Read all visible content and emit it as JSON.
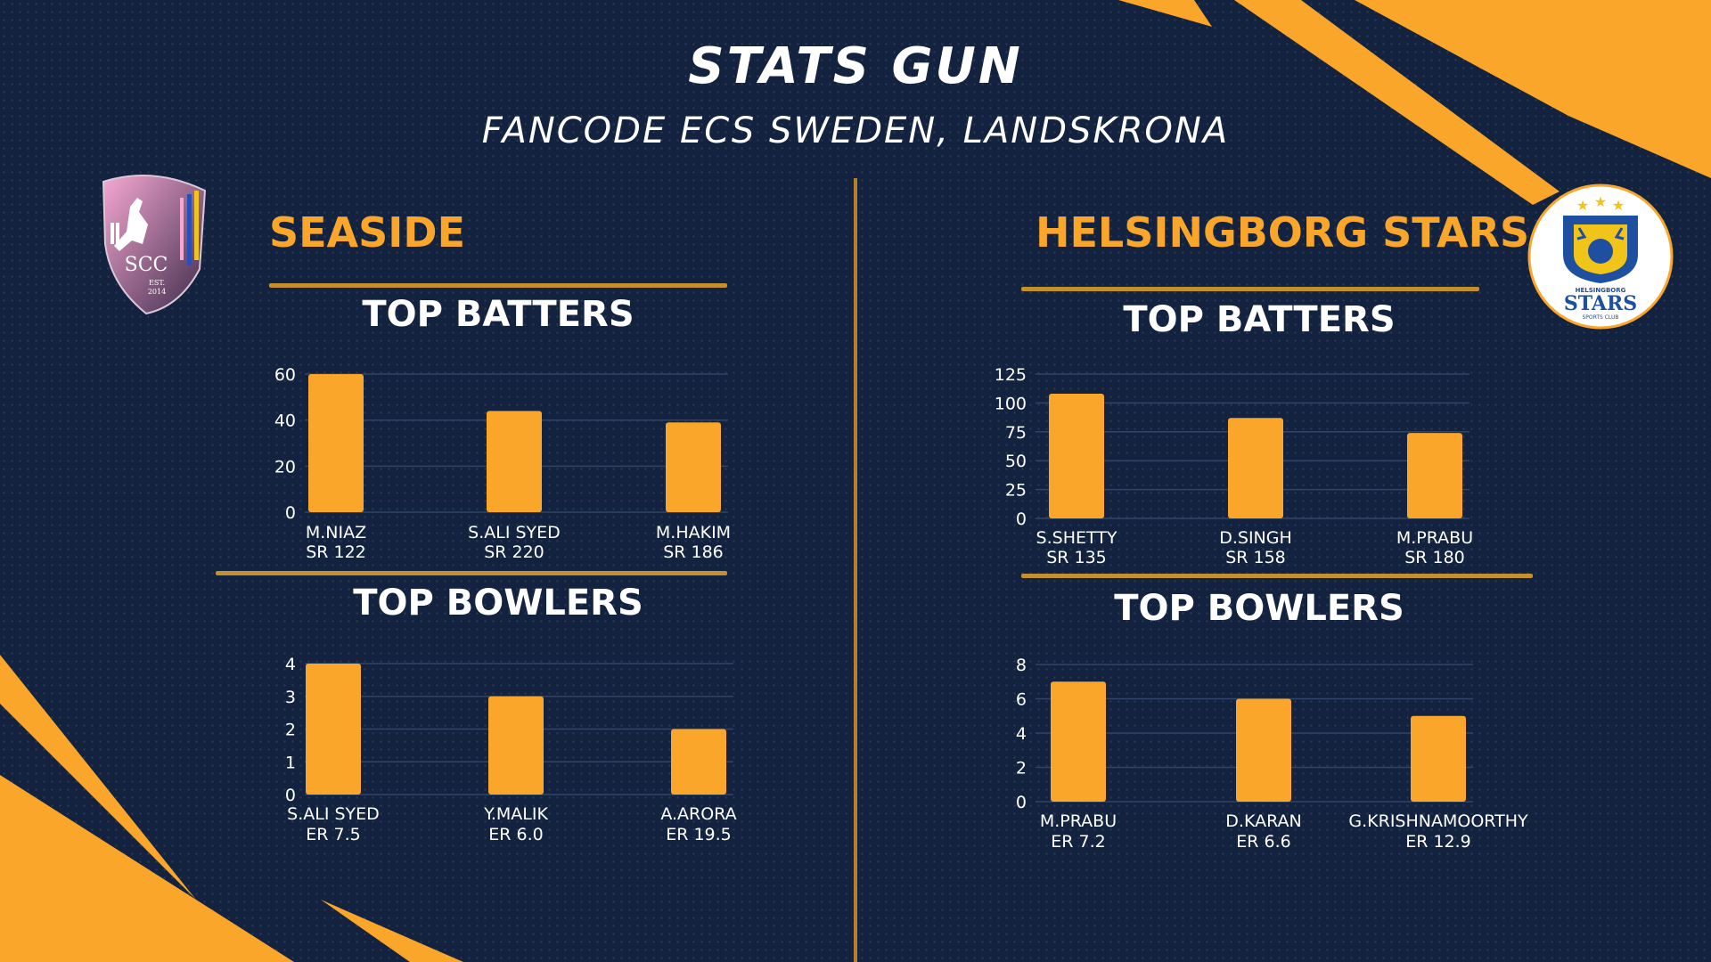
{
  "header": {
    "title": "STATS GUN",
    "subtitle": "FANCODE ECS SWEDEN, LANDSKRONA"
  },
  "colors": {
    "background": "#13233f",
    "accent": "#f9a62b",
    "divider": "#b87e2a",
    "text": "#ffffff"
  },
  "teams": [
    {
      "name": "SEASIDE",
      "logo": {
        "text": "SCC",
        "est_label": "EST.",
        "est_year": "2014"
      },
      "batters_heading": "TOP BATTERS",
      "bowlers_heading": "TOP BOWLERS"
    },
    {
      "name": "HELSINGBORG STARS",
      "logo": {
        "top_text": "HELSINGBORG",
        "main_text": "STARS",
        "sub_text": "SPORTS CLUB"
      },
      "batters_heading": "TOP BATTERS",
      "bowlers_heading": "TOP BOWLERS"
    }
  ],
  "chart_data": [
    {
      "type": "bar",
      "team": "SEASIDE",
      "title": "TOP BATTERS",
      "categories": [
        "M.NIAZ",
        "S.ALI SYED",
        "M.HAKIM"
      ],
      "sublabels": [
        "SR 122",
        "SR 220",
        "SR 186"
      ],
      "values": [
        60,
        44,
        39
      ],
      "ylim": [
        0,
        60
      ],
      "yticks": [
        0,
        20,
        40,
        60
      ],
      "grid": true,
      "color": "#f9a62b"
    },
    {
      "type": "bar",
      "team": "SEASIDE",
      "title": "TOP BOWLERS",
      "categories": [
        "S.ALI SYED",
        "Y.MALIK",
        "A.ARORA"
      ],
      "sublabels": [
        "ER 7.5",
        "ER 6.0",
        "ER 19.5"
      ],
      "values": [
        4,
        3,
        2
      ],
      "ylim": [
        0,
        4
      ],
      "yticks": [
        0,
        1,
        2,
        3,
        4
      ],
      "grid": true,
      "color": "#f9a62b"
    },
    {
      "type": "bar",
      "team": "HELSINGBORG STARS",
      "title": "TOP BATTERS",
      "categories": [
        "S.SHETTY",
        "D.SINGH",
        "M.PRABU"
      ],
      "sublabels": [
        "SR 135",
        "SR 158",
        "SR 180"
      ],
      "values": [
        108,
        87,
        74
      ],
      "ylim": [
        0,
        125
      ],
      "yticks": [
        0,
        25,
        50,
        75,
        100,
        125
      ],
      "grid": true,
      "color": "#f9a62b"
    },
    {
      "type": "bar",
      "team": "HELSINGBORG STARS",
      "title": "TOP BOWLERS",
      "categories": [
        "M.PRABU",
        "D.KARAN",
        "G.KRISHNAMOORTHY"
      ],
      "sublabels": [
        "ER 7.2",
        "ER 6.6",
        "ER 12.9"
      ],
      "values": [
        7,
        6,
        5
      ],
      "ylim": [
        0,
        8
      ],
      "yticks": [
        0,
        2,
        4,
        6,
        8
      ],
      "grid": true,
      "color": "#f9a62b"
    }
  ]
}
